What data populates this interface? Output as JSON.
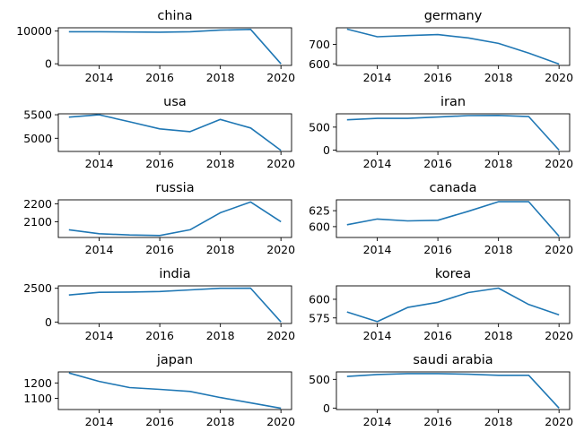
{
  "colors": {
    "line": "#1f77b4"
  },
  "chart_data": [
    {
      "type": "line",
      "title": "china",
      "x": [
        2013,
        2014,
        2015,
        2016,
        2017,
        2018,
        2019,
        2020
      ],
      "series": [
        {
          "values": [
            9800,
            9800,
            9700,
            9650,
            9800,
            10300,
            10500,
            0
          ]
        }
      ],
      "ylim": [
        -500,
        11000
      ],
      "yticks": [
        0,
        10000
      ],
      "ytick_labels": [
        "0",
        "10000"
      ],
      "xlim": [
        2012.65,
        2020.35
      ],
      "xticks": [
        2014,
        2016,
        2018,
        2020
      ],
      "xtick_labels": [
        "2014",
        "2016",
        "2018",
        "2020"
      ]
    },
    {
      "type": "line",
      "title": "germany",
      "x": [
        2013,
        2014,
        2015,
        2016,
        2017,
        2018,
        2019,
        2020
      ],
      "series": [
        {
          "values": [
            778,
            739,
            745,
            750,
            733,
            705,
            655,
            599
          ]
        }
      ],
      "ylim": [
        592,
        785
      ],
      "yticks": [
        600,
        700
      ],
      "ytick_labels": [
        "600",
        "700"
      ],
      "xlim": [
        2012.65,
        2020.35
      ],
      "xticks": [
        2014,
        2016,
        2018,
        2020
      ],
      "xtick_labels": [
        "2014",
        "2016",
        "2018",
        "2020"
      ]
    },
    {
      "type": "line",
      "title": "usa",
      "x": [
        2013,
        2014,
        2015,
        2016,
        2017,
        2018,
        2019,
        2020
      ],
      "series": [
        {
          "values": [
            5450,
            5500,
            5350,
            5200,
            5140,
            5400,
            5220,
            4740
          ]
        }
      ],
      "ylim": [
        4720,
        5520
      ],
      "yticks": [
        5000,
        5500
      ],
      "ytick_labels": [
        "5000",
        "5500"
      ],
      "xlim": [
        2012.65,
        2020.35
      ],
      "xticks": [
        2014,
        2016,
        2018,
        2020
      ],
      "xtick_labels": [
        "2014",
        "2016",
        "2018",
        "2020"
      ]
    },
    {
      "type": "line",
      "title": "iran",
      "x": [
        2013,
        2014,
        2015,
        2016,
        2017,
        2018,
        2019,
        2020
      ],
      "series": [
        {
          "values": [
            660,
            690,
            690,
            720,
            750,
            755,
            730,
            0
          ]
        }
      ],
      "ylim": [
        -30,
        790
      ],
      "yticks": [
        0,
        500
      ],
      "ytick_labels": [
        "0",
        "500"
      ],
      "xlim": [
        2012.65,
        2020.35
      ],
      "xticks": [
        2014,
        2016,
        2018,
        2020
      ],
      "xtick_labels": [
        "2014",
        "2016",
        "2018",
        "2020"
      ]
    },
    {
      "type": "line",
      "title": "russia",
      "x": [
        2013,
        2014,
        2015,
        2016,
        2017,
        2018,
        2019,
        2020
      ],
      "series": [
        {
          "values": [
            2055,
            2033,
            2026,
            2023,
            2055,
            2150,
            2210,
            2100
          ]
        }
      ],
      "ylim": [
        2012,
        2222
      ],
      "yticks": [
        2100,
        2200
      ],
      "ytick_labels": [
        "2100",
        "2200"
      ],
      "xlim": [
        2012.65,
        2020.35
      ],
      "xticks": [
        2014,
        2016,
        2018,
        2020
      ],
      "xtick_labels": [
        "2014",
        "2016",
        "2018",
        "2020"
      ]
    },
    {
      "type": "line",
      "title": "canada",
      "x": [
        2013,
        2014,
        2015,
        2016,
        2017,
        2018,
        2019,
        2020
      ],
      "series": [
        {
          "values": [
            603,
            612,
            609,
            610,
            624,
            639,
            639,
            585
          ]
        }
      ],
      "ylim": [
        583,
        642
      ],
      "yticks": [
        600,
        625
      ],
      "ytick_labels": [
        "600",
        "625"
      ],
      "xlim": [
        2012.65,
        2020.35
      ],
      "xticks": [
        2014,
        2016,
        2018,
        2020
      ],
      "xtick_labels": [
        "2014",
        "2016",
        "2018",
        "2020"
      ]
    },
    {
      "type": "line",
      "title": "india",
      "x": [
        2013,
        2014,
        2015,
        2016,
        2017,
        2018,
        2019,
        2020
      ],
      "series": [
        {
          "values": [
            2000,
            2200,
            2220,
            2260,
            2380,
            2500,
            2510,
            0
          ]
        }
      ],
      "ylim": [
        -110,
        2680
      ],
      "yticks": [
        0,
        2500
      ],
      "ytick_labels": [
        "0",
        "2500"
      ],
      "xlim": [
        2012.65,
        2020.35
      ],
      "xticks": [
        2014,
        2016,
        2018,
        2020
      ],
      "xtick_labels": [
        "2014",
        "2016",
        "2018",
        "2020"
      ]
    },
    {
      "type": "line",
      "title": "korea",
      "x": [
        2013,
        2014,
        2015,
        2016,
        2017,
        2018,
        2019,
        2020
      ],
      "series": [
        {
          "values": [
            583,
            570,
            589,
            596,
            609,
            615,
            593,
            579
          ]
        }
      ],
      "ylim": [
        567.5,
        618
      ],
      "yticks": [
        575,
        600
      ],
      "ytick_labels": [
        "575",
        "600"
      ],
      "xlim": [
        2012.65,
        2020.35
      ],
      "xticks": [
        2014,
        2016,
        2018,
        2020
      ],
      "xtick_labels": [
        "2014",
        "2016",
        "2018",
        "2020"
      ]
    },
    {
      "type": "line",
      "title": "japan",
      "x": [
        2013,
        2014,
        2015,
        2016,
        2017,
        2018,
        2019,
        2020
      ],
      "series": [
        {
          "values": [
            1265,
            1210,
            1170,
            1158,
            1145,
            1105,
            1070,
            1035
          ]
        }
      ],
      "ylim": [
        1027,
        1272
      ],
      "yticks": [
        1100,
        1200
      ],
      "ytick_labels": [
        "1100",
        "1200"
      ],
      "xlim": [
        2012.65,
        2020.35
      ],
      "xticks": [
        2014,
        2016,
        2018,
        2020
      ],
      "xtick_labels": [
        "2014",
        "2016",
        "2018",
        "2020"
      ]
    },
    {
      "type": "line",
      "title": "saudi arabia",
      "x": [
        2013,
        2014,
        2015,
        2016,
        2017,
        2018,
        2019,
        2020
      ],
      "series": [
        {
          "values": [
            550,
            585,
            600,
            600,
            590,
            570,
            570,
            0
          ]
        }
      ],
      "ylim": [
        -25,
        630
      ],
      "yticks": [
        0,
        500
      ],
      "ytick_labels": [
        "0",
        "500"
      ],
      "xlim": [
        2012.65,
        2020.35
      ],
      "xticks": [
        2014,
        2016,
        2018,
        2020
      ],
      "xtick_labels": [
        "2014",
        "2016",
        "2018",
        "2020"
      ]
    }
  ]
}
